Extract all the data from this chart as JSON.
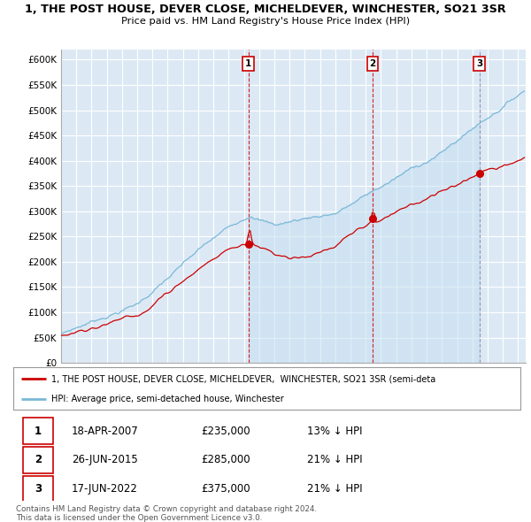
{
  "title_line1": "1, THE POST HOUSE, DEVER CLOSE, MICHELDEVER, WINCHESTER, SO21 3SR",
  "title_line2": "Price paid vs. HM Land Registry's House Price Index (HPI)",
  "ylim": [
    0,
    620000
  ],
  "yticks": [
    0,
    50000,
    100000,
    150000,
    200000,
    250000,
    300000,
    350000,
    400000,
    450000,
    500000,
    550000,
    600000
  ],
  "ytick_labels": [
    "£0",
    "£50K",
    "£100K",
    "£150K",
    "£200K",
    "£250K",
    "£300K",
    "£350K",
    "£400K",
    "£450K",
    "£500K",
    "£550K",
    "£600K"
  ],
  "hpi_color": "#7ab8d8",
  "price_color": "#cc0000",
  "plot_bg_color": "#dce9f5",
  "shade_color": "#c5dff0",
  "sale_dates": [
    2007.3,
    2015.46,
    2022.46
  ],
  "sale_prices": [
    235000,
    285000,
    375000
  ],
  "sale_labels": [
    "1",
    "2",
    "3"
  ],
  "vline_colors": [
    "#cc0000",
    "#cc0000",
    "#8888aa"
  ],
  "legend_entries": [
    "1, THE POST HOUSE, DEVER CLOSE, MICHELDEVER,  WINCHESTER, SO21 3SR (semi-deta",
    "HPI: Average price, semi-detached house, Winchester"
  ],
  "table_rows": [
    [
      "1",
      "18-APR-2007",
      "£235,000",
      "13% ↓ HPI"
    ],
    [
      "2",
      "26-JUN-2015",
      "£285,000",
      "21% ↓ HPI"
    ],
    [
      "3",
      "17-JUN-2022",
      "£375,000",
      "21% ↓ HPI"
    ]
  ],
  "footer": "Contains HM Land Registry data © Crown copyright and database right 2024.\nThis data is licensed under the Open Government Licence v3.0.",
  "xmin": 1995.0,
  "xmax": 2025.5
}
